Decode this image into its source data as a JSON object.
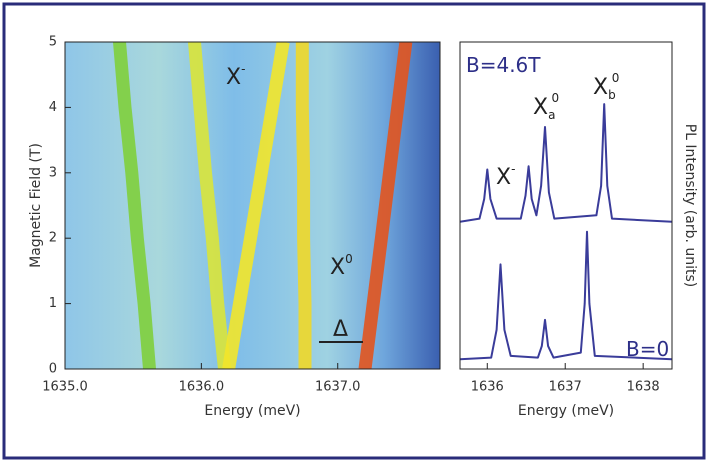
{
  "chart_data": [
    {
      "type": "line",
      "xlabel": "Energy (meV)",
      "ylabel": "Magnetic Field (T)",
      "xlim": [
        1635.0,
        1637.75
      ],
      "ylim": [
        0,
        5
      ],
      "xticks": [
        {
          "value": 1635.0,
          "label": "1635.0"
        },
        {
          "value": 1636.0,
          "label": "1636.0"
        },
        {
          "value": 1637.0,
          "label": "1637.0"
        }
      ],
      "yticks": [
        0,
        1,
        2,
        3,
        4,
        5
      ],
      "line_width": 13,
      "series": [
        {
          "color": "#7fcf3c",
          "x": [
            1635.62,
            1635.58,
            1635.53,
            1635.49,
            1635.44,
            1635.4
          ],
          "values": [
            0,
            1,
            2,
            3,
            4,
            5
          ]
        },
        {
          "color": "#d9e43a",
          "x": [
            1636.17,
            1636.12,
            1636.08,
            1636.03,
            1635.99,
            1635.95
          ],
          "values": [
            0,
            1,
            2,
            3,
            4,
            5
          ]
        },
        {
          "color": "#f2e52a",
          "x": [
            1636.2,
            1636.28,
            1636.36,
            1636.44,
            1636.52,
            1636.6
          ],
          "values": [
            0,
            1,
            2,
            3,
            4,
            5
          ]
        },
        {
          "color": "#f0d828",
          "x": [
            1636.76,
            1636.76,
            1636.75,
            1636.75,
            1636.74,
            1636.74
          ],
          "values": [
            0,
            1,
            2,
            3,
            4,
            5
          ]
        },
        {
          "color": "#e2541e",
          "x": [
            1637.2,
            1637.26,
            1637.32,
            1637.38,
            1637.44,
            1637.5
          ],
          "values": [
            0,
            1,
            2,
            3,
            4,
            5
          ]
        }
      ],
      "annotations": [
        {
          "text": "X",
          "sup": "-"
        },
        {
          "text": "X",
          "sup": "0"
        },
        {
          "text": "Δ"
        }
      ]
    },
    {
      "type": "line",
      "xlabel": "Energy (meV)",
      "ylabel": "PL Intensity (arb. units)",
      "xlim": [
        1635.65,
        1638.37
      ],
      "ylim": [
        0,
        10
      ],
      "xticks": [
        1636,
        1637,
        1638
      ],
      "line_width": 2,
      "series": [
        {
          "color": "#3a3c9a",
          "x": [
            1635.65,
            1635.9,
            1635.96,
            1636.0,
            1636.04,
            1636.12,
            1636.43,
            1636.49,
            1636.53,
            1636.57,
            1636.63,
            1636.69,
            1636.74,
            1636.79,
            1636.86,
            1637.4,
            1637.46,
            1637.5,
            1637.54,
            1637.6,
            1638.37
          ],
          "values": [
            4.5,
            4.6,
            5.2,
            6.1,
            5.2,
            4.6,
            4.6,
            5.3,
            6.2,
            5.2,
            4.7,
            5.6,
            7.4,
            5.4,
            4.6,
            4.7,
            5.6,
            8.1,
            5.6,
            4.6,
            4.5
          ]
        },
        {
          "color": "#3a3c9a",
          "x": [
            1635.65,
            1636.05,
            1636.12,
            1636.17,
            1636.22,
            1636.3,
            1636.65,
            1636.7,
            1636.74,
            1636.78,
            1636.85,
            1637.2,
            1637.25,
            1637.28,
            1637.31,
            1637.38,
            1638.37
          ],
          "values": [
            0.3,
            0.35,
            1.2,
            3.2,
            1.2,
            0.4,
            0.35,
            0.7,
            1.5,
            0.7,
            0.35,
            0.5,
            2.0,
            4.2,
            2.0,
            0.4,
            0.3
          ]
        }
      ],
      "annotations": [
        {
          "text": "B=4.6T"
        },
        {
          "text": "X",
          "sup": "-"
        },
        {
          "text": "X",
          "sup": "0",
          "sub": "a"
        },
        {
          "text": "X",
          "sup": "0",
          "sub": "b"
        },
        {
          "text": "B=0"
        }
      ]
    }
  ]
}
